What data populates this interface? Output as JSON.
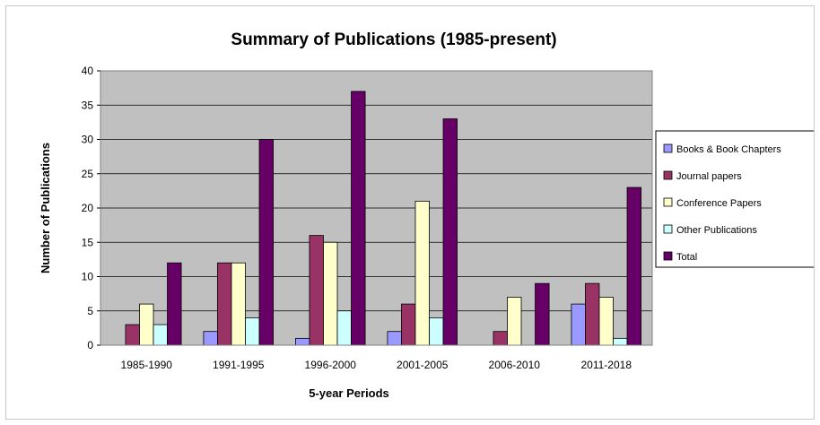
{
  "chart_data": {
    "type": "bar",
    "title": "Summary of Publications (1985-present)",
    "xlabel": "5-year Periods",
    "ylabel": "Number of Publications",
    "ylim": [
      0,
      40
    ],
    "yticks": [
      0,
      5,
      10,
      15,
      20,
      25,
      30,
      35,
      40
    ],
    "grid": true,
    "legend_position": "right",
    "categories": [
      "1985-1990",
      "1991-1995",
      "1996-2000",
      "2001-2005",
      "2006-2010",
      "2011-2018"
    ],
    "series": [
      {
        "name": "Books & Book Chapters",
        "color": "#9999ff",
        "values": [
          0,
          2,
          1,
          2,
          0,
          6
        ]
      },
      {
        "name": "Journal papers",
        "color": "#993366",
        "values": [
          3,
          12,
          16,
          6,
          2,
          9
        ]
      },
      {
        "name": "Conference Papers",
        "color": "#ffffcc",
        "values": [
          6,
          12,
          15,
          21,
          7,
          7
        ]
      },
      {
        "name": "Other Publications",
        "color": "#ccffff",
        "values": [
          3,
          4,
          5,
          4,
          0,
          1
        ]
      },
      {
        "name": "Total",
        "color": "#660066",
        "values": [
          12,
          30,
          37,
          33,
          9,
          23
        ]
      }
    ],
    "plot_background": "#c0c0c0"
  }
}
